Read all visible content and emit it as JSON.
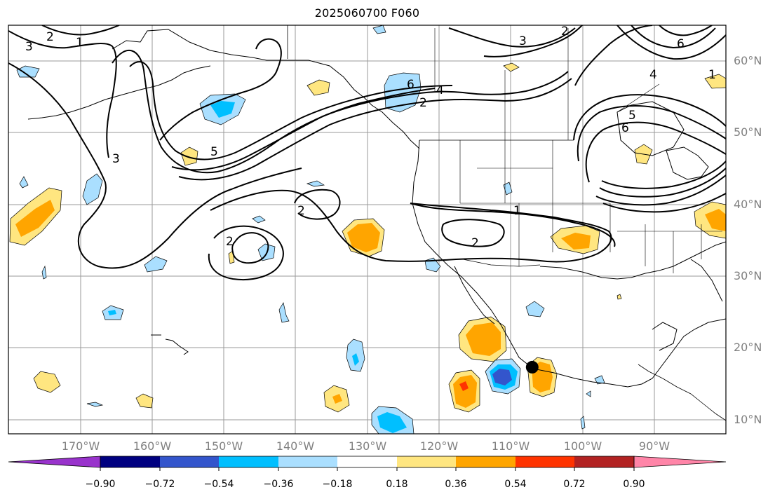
{
  "title": "2025060700 F060",
  "map": {
    "projection": "PlateCarree",
    "lon_range": [
      -180,
      -80
    ],
    "lat_range": [
      8,
      65
    ],
    "lat_ticks": [
      {
        "value": 60,
        "label": "60°N"
      },
      {
        "value": 50,
        "label": "50°N"
      },
      {
        "value": 40,
        "label": "40°N"
      },
      {
        "value": 30,
        "label": "30°N"
      },
      {
        "value": 20,
        "label": "20°N"
      },
      {
        "value": 10,
        "label": "10°N"
      }
    ],
    "lon_ticks": [
      {
        "value": -170,
        "label": "170°W"
      },
      {
        "value": -160,
        "label": "160°W"
      },
      {
        "value": -150,
        "label": "150°W"
      },
      {
        "value": -140,
        "label": "140°W"
      },
      {
        "value": -130,
        "label": "130°W"
      },
      {
        "value": -120,
        "label": "120°W"
      },
      {
        "value": -110,
        "label": "110°W"
      },
      {
        "value": -100,
        "label": "100°W"
      },
      {
        "value": -90,
        "label": "90°W"
      }
    ],
    "gridlines": true,
    "contour_labels": [
      "2",
      "1",
      "3",
      "3",
      "5",
      "6",
      "4",
      "2",
      "2",
      "2",
      "2",
      "1",
      "2",
      "3",
      "6",
      "4",
      "6",
      "5",
      "1"
    ],
    "marker": {
      "lon": -107,
      "lat": 17.3,
      "color": "#000000"
    }
  },
  "colorbar": {
    "levels": [
      -0.9,
      -0.72,
      -0.54,
      -0.36,
      -0.18,
      0.18,
      0.36,
      0.54,
      0.72,
      0.9
    ],
    "labels": [
      "−0.90",
      "−0.72",
      "−0.54",
      "−0.36",
      "−0.18",
      "0.18",
      "0.36",
      "0.54",
      "0.72",
      "0.90"
    ],
    "colors": [
      "#9933cc",
      "#000080",
      "#3355cc",
      "#00bfff",
      "#aadfff",
      "#ffffff",
      "#ffe680",
      "#ffa500",
      "#ff3300",
      "#b22222",
      "#ff85a8"
    ],
    "extend": "both"
  }
}
